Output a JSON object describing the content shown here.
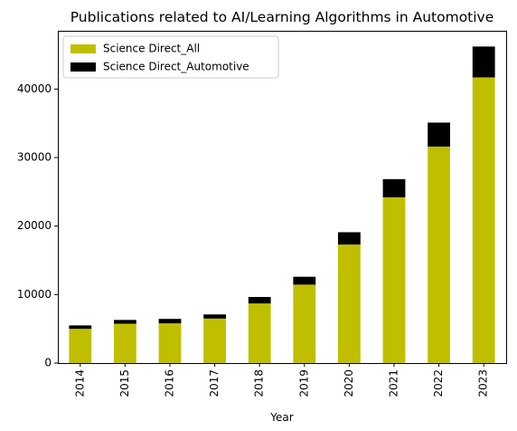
{
  "chart_data": {
    "type": "bar",
    "stacked": true,
    "title": "Publications related to AI/Learning Algorithms in Automotive",
    "xlabel": "Year",
    "ylabel": "",
    "categories": [
      "2014",
      "2015",
      "2016",
      "2017",
      "2018",
      "2019",
      "2020",
      "2021",
      "2022",
      "2023"
    ],
    "series": [
      {
        "name": "Science Direct_All",
        "color": "#bfbf00",
        "values": [
          5000,
          5750,
          5800,
          6500,
          8700,
          11450,
          17300,
          24200,
          31600,
          41700
        ]
      },
      {
        "name": "Science Direct_Automotive",
        "color": "#000000",
        "values": [
          500,
          550,
          650,
          600,
          950,
          1150,
          1800,
          2650,
          3500,
          4500
        ]
      }
    ],
    "ylim": [
      0,
      48500
    ],
    "yticks": [
      0,
      10000,
      20000,
      30000,
      40000
    ],
    "ytick_labels": [
      "0",
      "10000",
      "20000",
      "30000",
      "40000"
    ],
    "grid": false,
    "legend_position": "top-left",
    "x_tick_rotation": "vertical"
  }
}
